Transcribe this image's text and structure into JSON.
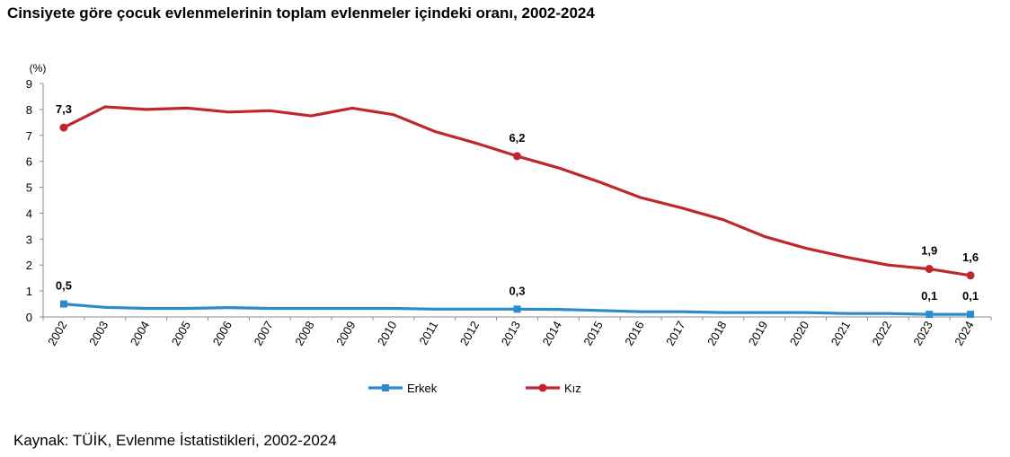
{
  "title": "Cinsiyete göre çocuk evlenmelerinin toplam evlenmeler içindeki oranı, 2002-2024",
  "source": "Kaynak: TÜİK, Evlenme İstatistikleri, 2002-2024",
  "chart_data": {
    "type": "line",
    "ylabel": "(%)",
    "ylim": [
      0,
      9
    ],
    "yticks": [
      "0",
      "1",
      "2",
      "3",
      "4",
      "5",
      "6",
      "7",
      "8",
      "9"
    ],
    "grid": false,
    "legend_position": "bottom",
    "categories": [
      "2002",
      "2003",
      "2004",
      "2005",
      "2006",
      "2007",
      "2008",
      "2009",
      "2010",
      "2011",
      "2012",
      "2013",
      "2014",
      "2015",
      "2016",
      "2017",
      "2018",
      "2019",
      "2020",
      "2021",
      "2022",
      "2023",
      "2024"
    ],
    "series": [
      {
        "name": "Erkek",
        "color": "#2e8bcb",
        "marker": "square",
        "values": [
          0.5,
          0.37,
          0.33,
          0.33,
          0.36,
          0.33,
          0.33,
          0.33,
          0.33,
          0.3,
          0.3,
          0.3,
          0.29,
          0.25,
          0.2,
          0.2,
          0.17,
          0.17,
          0.17,
          0.13,
          0.13,
          0.1,
          0.1
        ],
        "labels": [
          {
            "index": 0,
            "text": "0,5"
          },
          {
            "index": 11,
            "text": "0,3"
          },
          {
            "index": 21,
            "text": "0,1"
          },
          {
            "index": 22,
            "text": "0,1"
          }
        ]
      },
      {
        "name": "Kız",
        "color": "#c0272d",
        "marker": "circle",
        "values": [
          7.3,
          8.1,
          8.0,
          8.05,
          7.9,
          7.95,
          7.75,
          8.05,
          7.8,
          7.15,
          6.7,
          6.2,
          5.75,
          5.2,
          4.6,
          4.2,
          3.75,
          3.1,
          2.65,
          2.3,
          2.0,
          1.85,
          1.6
        ],
        "labels": [
          {
            "index": 0,
            "text": "7,3"
          },
          {
            "index": 11,
            "text": "6,2"
          },
          {
            "index": 21,
            "text": "1,9"
          },
          {
            "index": 22,
            "text": "1,6"
          }
        ]
      }
    ]
  }
}
